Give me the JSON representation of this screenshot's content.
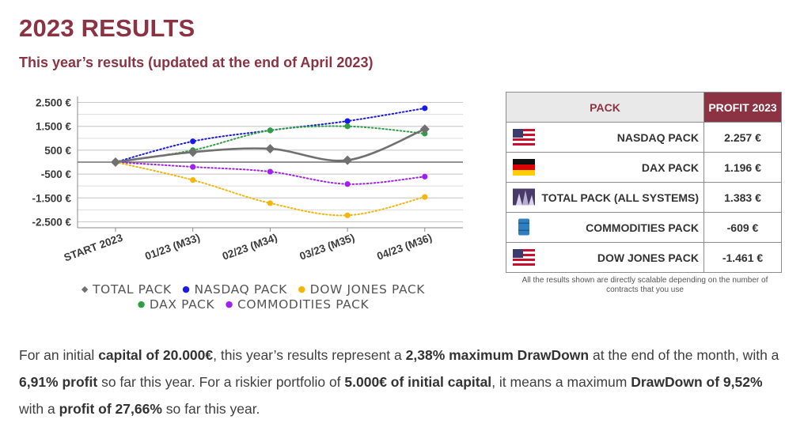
{
  "title": "2023 RESULTS",
  "subtitle": "This year’s results (updated at the end of April 2023)",
  "chart_data": {
    "type": "line",
    "categories": [
      "START 2023",
      "01/23 (M33)",
      "02/23 (M34)",
      "03/23 (M35)",
      "04/23 (M36)"
    ],
    "ylim": [
      -2750,
      2750
    ],
    "yticks": [
      2500,
      1500,
      500,
      -500,
      -1500,
      -2500
    ],
    "ytick_labels": [
      "2.500 €",
      "1.500 €",
      "500 €",
      "-500 €",
      "-1.500 €",
      "-2.500 €"
    ],
    "grid": true,
    "series": [
      {
        "name": "TOTAL PACK",
        "values": [
          0,
          420,
          560,
          80,
          1383
        ],
        "color": "#707070",
        "marker": "◆",
        "style": "solid"
      },
      {
        "name": "NASDAQ PACK",
        "values": [
          0,
          870,
          1330,
          1720,
          2257
        ],
        "color": "#1a1ae6",
        "marker": "●",
        "style": "dotted"
      },
      {
        "name": "DOW JONES PACK",
        "values": [
          0,
          -750,
          -1720,
          -2230,
          -1461
        ],
        "color": "#f5b50a",
        "marker": "●",
        "style": "dotted"
      },
      {
        "name": "DAX PACK",
        "values": [
          0,
          500,
          1330,
          1500,
          1196
        ],
        "color": "#2ea043",
        "marker": "●",
        "style": "dotted"
      },
      {
        "name": "COMMODITIES PACK",
        "values": [
          0,
          -200,
          -400,
          -920,
          -609
        ],
        "color": "#a020f0",
        "marker": "●",
        "style": "dotted"
      }
    ]
  },
  "legend": {
    "items": [
      {
        "marker": "◆",
        "label": "TOTAL PACK",
        "color": "#707070"
      },
      {
        "marker": "●",
        "label": "NASDAQ PACK",
        "color": "#1a1ae6"
      },
      {
        "marker": "●",
        "label": "DOW JONES PACK",
        "color": "#f5b50a"
      },
      {
        "marker": "●",
        "label": "DAX PACK",
        "color": "#2ea043"
      },
      {
        "marker": "●",
        "label": "COMMODITIES PACK",
        "color": "#a020f0"
      }
    ]
  },
  "table": {
    "header_pack": "PACK",
    "header_profit": "PROFIT 2023",
    "rows": [
      {
        "icon": "us-flag-icon",
        "pack": "NASDAQ PACK",
        "profit": "2.257 €"
      },
      {
        "icon": "germany-flag-icon",
        "pack": "DAX PACK",
        "profit": "1.196 €"
      },
      {
        "icon": "total-pack-icon",
        "pack": "TOTAL PACK (ALL SYSTEMS)",
        "profit": "1.383 €"
      },
      {
        "icon": "barrel-icon",
        "pack": "COMMODITIES PACK",
        "profit": "-609 €"
      },
      {
        "icon": "us-flag-icon",
        "pack": "DOW JONES PACK",
        "profit": "-1.461 €"
      }
    ],
    "note": "All the results shown are directly scalable depending on the number of contracts that you use"
  },
  "summary": {
    "s1": "For an initial ",
    "b1": "capital of 20.000€",
    "s2": ", this year’s results represent a ",
    "b2": "2,38% maximum DrawDown",
    "s3": " at the end of the month, with a ",
    "b3": "6,91% profit",
    "s4": " so far this year. For a riskier portfolio of ",
    "b4": "5.000€ of initial capital",
    "s5": ", it means a maximum ",
    "b5": "DrawDown of 9,52%",
    "s6": " with a ",
    "b6": "profit of 27,66%",
    "s7": " so far this year."
  }
}
